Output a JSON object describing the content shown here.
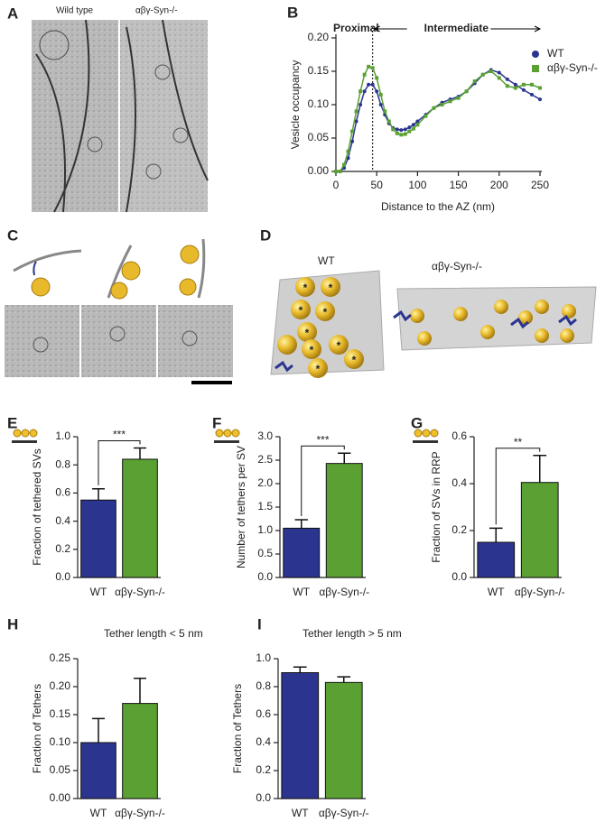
{
  "figure_panels": {
    "A": {
      "letter": "A",
      "labels": [
        "Wild type",
        "αβγ-Syn-/-"
      ]
    },
    "C": {
      "letter": "C"
    },
    "D": {
      "letter": "D",
      "labels": [
        "WT",
        "αβγ-Syn-/-"
      ],
      "vesicle_marker": "*"
    }
  },
  "chart_data": [
    {
      "type": "line",
      "panel": "B",
      "x_label": "Distance to the AZ (nm)",
      "y_label": "Vesicle occupancy",
      "x": [
        0,
        5,
        10,
        15,
        20,
        25,
        30,
        35,
        40,
        45,
        50,
        55,
        60,
        65,
        70,
        75,
        80,
        85,
        90,
        95,
        100,
        110,
        120,
        130,
        140,
        150,
        160,
        170,
        180,
        190,
        200,
        210,
        220,
        230,
        240,
        250
      ],
      "series": [
        {
          "name": "WT",
          "color": "#2b3590",
          "marker": "circle",
          "values": [
            0,
            0,
            0.005,
            0.02,
            0.045,
            0.075,
            0.1,
            0.12,
            0.13,
            0.13,
            0.12,
            0.1,
            0.085,
            0.072,
            0.065,
            0.063,
            0.062,
            0.063,
            0.066,
            0.07,
            0.075,
            0.085,
            0.095,
            0.103,
            0.108,
            0.112,
            0.12,
            0.132,
            0.145,
            0.152,
            0.148,
            0.138,
            0.13,
            0.122,
            0.115,
            0.108
          ]
        },
        {
          "name": "αβγ-Syn-/-",
          "color": "#5aa032",
          "marker": "square",
          "values": [
            0,
            0,
            0.01,
            0.03,
            0.06,
            0.09,
            0.12,
            0.145,
            0.157,
            0.155,
            0.14,
            0.115,
            0.09,
            0.075,
            0.063,
            0.057,
            0.055,
            0.056,
            0.06,
            0.064,
            0.07,
            0.083,
            0.095,
            0.1,
            0.105,
            0.11,
            0.12,
            0.135,
            0.145,
            0.15,
            0.14,
            0.128,
            0.125,
            0.13,
            0.13,
            0.125
          ]
        }
      ],
      "xlim": [
        0,
        250
      ],
      "xticks": [
        0,
        50,
        100,
        150,
        200,
        250
      ],
      "ylim": [
        0,
        0.2
      ],
      "yticks": [
        {
          "value": 0,
          "label": "0.00"
        },
        {
          "value": 0.05,
          "label": "0.05"
        },
        {
          "value": 0.1,
          "label": "0.10"
        },
        {
          "value": 0.15,
          "label": "0.15"
        },
        {
          "value": 0.2,
          "label": "0.20"
        }
      ],
      "vline": 45,
      "regions": [
        "Proximal",
        "Intermediate"
      ],
      "legend": "top-right"
    },
    {
      "type": "bar",
      "panel": "E",
      "y_label": "Fraction of tethered SVs",
      "categories": [
        "WT",
        "αβγ-Syn-/-"
      ],
      "values": [
        0.55,
        0.84
      ],
      "errors": [
        0.08,
        0.08
      ],
      "colors": [
        "#2b3590",
        "#5aa032"
      ],
      "significance": "***",
      "ylim": [
        0,
        1
      ],
      "yticks": [
        {
          "value": 0,
          "label": "0.0"
        },
        0.2,
        0.4,
        0.6,
        0.8,
        {
          "value": 1,
          "label": "1.0"
        }
      ]
    },
    {
      "type": "bar",
      "panel": "F",
      "y_label": "Number of tethers per SV",
      "categories": [
        "WT",
        "αβγ-Syn-/-"
      ],
      "values": [
        1.05,
        2.43
      ],
      "errors": [
        0.18,
        0.22
      ],
      "colors": [
        "#2b3590",
        "#5aa032"
      ],
      "significance": "***",
      "ylim": [
        0,
        3
      ],
      "yticks": [
        {
          "value": 0,
          "label": "0.0"
        },
        0.5,
        {
          "value": 1,
          "label": "1.0"
        },
        1.5,
        {
          "value": 2,
          "label": "2.0"
        },
        2.5,
        {
          "value": 3,
          "label": "3.0"
        }
      ]
    },
    {
      "type": "bar",
      "panel": "G",
      "y_label": "Fraction of SVs in RRP",
      "categories": [
        "WT",
        "αβγ-Syn-/-"
      ],
      "values": [
        0.15,
        0.405
      ],
      "errors": [
        0.06,
        0.115
      ],
      "colors": [
        "#2b3590",
        "#5aa032"
      ],
      "significance": "**",
      "ylim": [
        0,
        0.6
      ],
      "yticks": [
        {
          "value": 0,
          "label": "0.0"
        },
        0.2,
        0.4,
        0.6
      ]
    },
    {
      "type": "bar",
      "panel": "H",
      "title": "Tether length < 5 nm",
      "y_label": "Fraction of Tethers",
      "categories": [
        "WT",
        "αβγ-Syn-/-"
      ],
      "values": [
        0.1,
        0.17
      ],
      "errors": [
        0.043,
        0.045
      ],
      "colors": [
        "#2b3590",
        "#5aa032"
      ],
      "ylim": [
        0,
        0.25
      ],
      "yticks": [
        {
          "value": 0,
          "label": "0.00"
        },
        0.05,
        {
          "value": 0.1,
          "label": "0.10"
        },
        0.15,
        {
          "value": 0.2,
          "label": "0.20"
        },
        0.25
      ]
    },
    {
      "type": "bar",
      "panel": "I",
      "title": "Tether length > 5 nm",
      "y_label": "Fraction of Tethers",
      "categories": [
        "WT",
        "αβγ-Syn-/-"
      ],
      "values": [
        0.9,
        0.83
      ],
      "errors": [
        0.04,
        0.04
      ],
      "colors": [
        "#2b3590",
        "#5aa032"
      ],
      "ylim": [
        0,
        1
      ],
      "yticks": [
        {
          "value": 0,
          "label": "0.0"
        },
        0.2,
        0.4,
        0.6,
        0.8,
        {
          "value": 1,
          "label": "1.0"
        }
      ]
    }
  ]
}
